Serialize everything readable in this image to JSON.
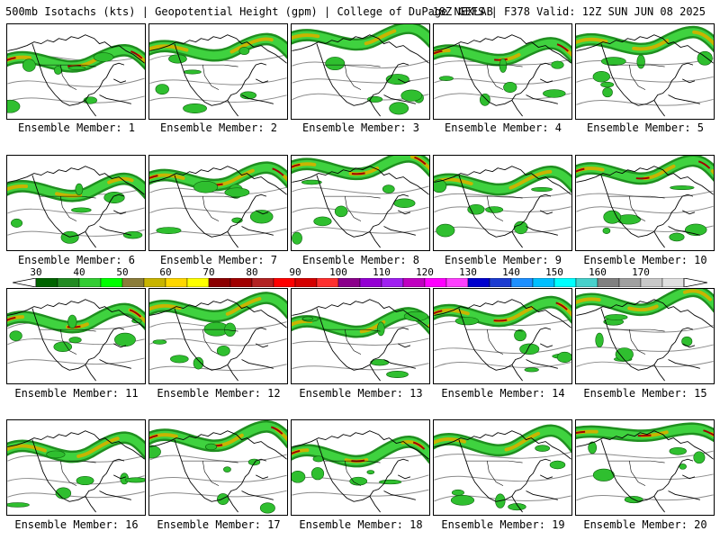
{
  "header": {
    "title": "500mb Isotachs (kts) | Geopotential Height (gpm) | College of DuPage NEXLAB",
    "run_info": "18Z GEFS | F378 Valid: 12Z SUN JUN 08 2025"
  },
  "members": [
    {
      "label": "Ensemble Member: 1"
    },
    {
      "label": "Ensemble Member: 2"
    },
    {
      "label": "Ensemble Member: 3"
    },
    {
      "label": "Ensemble Member: 4"
    },
    {
      "label": "Ensemble Member: 5"
    },
    {
      "label": "Ensemble Member: 6"
    },
    {
      "label": "Ensemble Member: 7"
    },
    {
      "label": "Ensemble Member: 8"
    },
    {
      "label": "Ensemble Member: 9"
    },
    {
      "label": "Ensemble Member: 10"
    },
    {
      "label": "Ensemble Member: 11"
    },
    {
      "label": "Ensemble Member: 12"
    },
    {
      "label": "Ensemble Member: 13"
    },
    {
      "label": "Ensemble Member: 14"
    },
    {
      "label": "Ensemble Member: 15"
    },
    {
      "label": "Ensemble Member: 16"
    },
    {
      "label": "Ensemble Member: 17"
    },
    {
      "label": "Ensemble Member: 18"
    },
    {
      "label": "Ensemble Member: 19"
    },
    {
      "label": "Ensemble Member: 20"
    }
  ],
  "colorbar": {
    "labels": [
      "30",
      "40",
      "50",
      "60",
      "70",
      "80",
      "90",
      "100",
      "110",
      "120",
      "130",
      "140",
      "150",
      "160",
      "170"
    ],
    "colors": [
      "#006400",
      "#228b22",
      "#32cd32",
      "#00ff00",
      "#8b7d3a",
      "#c8b400",
      "#ffd700",
      "#ffff00",
      "#8b0000",
      "#a00000",
      "#b22222",
      "#ff0000",
      "#d40000",
      "#ff3030",
      "#8b008b",
      "#9400d3",
      "#a020f0",
      "#c000c0",
      "#ff00ff",
      "#ff40ff",
      "#0000cd",
      "#1c3cd0",
      "#1e90ff",
      "#00bfff",
      "#00ffff",
      "#48d1cc",
      "#808080",
      "#a0a0a0",
      "#c8c8c8",
      "#e0e0e0"
    ]
  }
}
